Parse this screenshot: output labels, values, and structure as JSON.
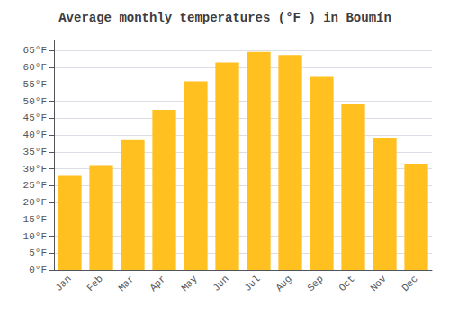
{
  "chart_data": {
    "type": "bar",
    "title": "Average monthly temperatures (°F ) in Boumín",
    "categories": [
      "Jan",
      "Feb",
      "Mar",
      "Apr",
      "May",
      "Jun",
      "Jul",
      "Aug",
      "Sep",
      "Oct",
      "Nov",
      "Dec"
    ],
    "values": [
      27.9,
      31.1,
      38.5,
      47.5,
      55.9,
      61.5,
      64.6,
      63.7,
      57.2,
      49.1,
      39.2,
      31.5
    ],
    "color": "#FFC020",
    "ylim": [
      0,
      68
    ],
    "yticks": [
      {
        "value": 0,
        "label": "0°F"
      },
      {
        "value": 5,
        "label": "5°F"
      },
      {
        "value": 10,
        "label": "10°F"
      },
      {
        "value": 15,
        "label": "15°F"
      },
      {
        "value": 20,
        "label": "20°F"
      },
      {
        "value": 25,
        "label": "25°F"
      },
      {
        "value": 30,
        "label": "30°F"
      },
      {
        "value": 35,
        "label": "35°F"
      },
      {
        "value": 40,
        "label": "40°F"
      },
      {
        "value": 45,
        "label": "45°F"
      },
      {
        "value": 50,
        "label": "50°F"
      },
      {
        "value": 55,
        "label": "55°F"
      },
      {
        "value": 60,
        "label": "60°F"
      },
      {
        "value": 65,
        "label": "65°F"
      }
    ],
    "grid": true
  }
}
